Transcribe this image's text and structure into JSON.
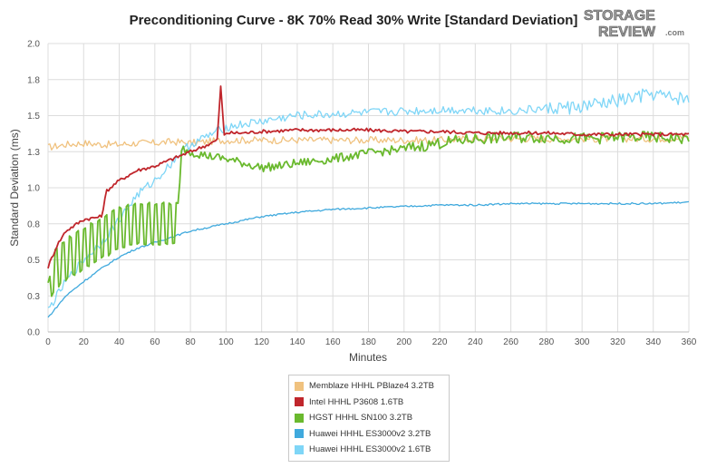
{
  "chart_data": {
    "type": "line",
    "title": "Preconditioning Curve - 8K 70% Read 30% Write [Standard Deviation]",
    "xlabel": "Minutes",
    "ylabel": "Standard Deviation (ms)",
    "xlim": [
      0,
      360
    ],
    "ylim": [
      0,
      2.0
    ],
    "x_ticks": [
      0,
      20,
      40,
      60,
      80,
      100,
      120,
      140,
      160,
      180,
      200,
      220,
      240,
      260,
      280,
      300,
      320,
      340,
      360
    ],
    "y_ticks": [
      0.0,
      0.25,
      0.5,
      0.75,
      1.0,
      1.25,
      1.5,
      1.75,
      2.0
    ],
    "y_tick_labels": [
      "0.0",
      "0.3",
      "0.5",
      "0.8",
      "1.0",
      "1.3",
      "1.5",
      "1.8",
      "2.0"
    ],
    "grid": true,
    "legend_position": "bottom",
    "series": [
      {
        "name": "Memblaze HHHL PBlaze4 3.2TB",
        "color": "#f0c27f",
        "x": [
          0,
          10,
          20,
          30,
          40,
          50,
          60,
          70,
          80,
          90,
          100,
          120,
          140,
          160,
          180,
          200,
          220,
          240,
          260,
          280,
          300,
          320,
          340,
          360
        ],
        "y": [
          1.28,
          1.3,
          1.31,
          1.3,
          1.3,
          1.31,
          1.31,
          1.32,
          1.31,
          1.32,
          1.33,
          1.33,
          1.33,
          1.33,
          1.33,
          1.33,
          1.33,
          1.34,
          1.34,
          1.34,
          1.34,
          1.34,
          1.34,
          1.35
        ]
      },
      {
        "name": "Intel HHHL P3608 1.6TB",
        "color": "#c0262c",
        "x": [
          0,
          5,
          10,
          20,
          30,
          33,
          40,
          50,
          60,
          70,
          80,
          90,
          95,
          97,
          99,
          100,
          110,
          120,
          140,
          160,
          180,
          200,
          220,
          240,
          260,
          280,
          300,
          320,
          340,
          360
        ],
        "y": [
          0.45,
          0.6,
          0.7,
          0.78,
          0.8,
          0.98,
          1.05,
          1.12,
          1.15,
          1.2,
          1.25,
          1.3,
          1.33,
          1.7,
          1.36,
          1.38,
          1.38,
          1.39,
          1.4,
          1.4,
          1.4,
          1.39,
          1.39,
          1.38,
          1.38,
          1.38,
          1.37,
          1.37,
          1.37,
          1.37
        ]
      },
      {
        "name": "HGST HHHL SN100 3.2TB",
        "color": "#6ab92e",
        "x": [
          0,
          5,
          10,
          20,
          30,
          40,
          50,
          60,
          70,
          73,
          75,
          80,
          90,
          100,
          110,
          120,
          130,
          140,
          160,
          180,
          200,
          220,
          240,
          260,
          280,
          300,
          320,
          340,
          360
        ],
        "y": [
          0.35,
          0.45,
          0.5,
          0.58,
          0.65,
          0.72,
          0.75,
          0.75,
          0.75,
          0.75,
          1.28,
          1.25,
          1.22,
          1.2,
          1.17,
          1.14,
          1.15,
          1.17,
          1.2,
          1.24,
          1.27,
          1.31,
          1.34,
          1.35,
          1.35,
          1.34,
          1.35,
          1.35,
          1.34
        ]
      },
      {
        "name": "Huawei HHHL ES3000v2 3.2TB",
        "color": "#3fa9dd",
        "x": [
          0,
          10,
          20,
          30,
          40,
          50,
          60,
          70,
          80,
          100,
          120,
          140,
          160,
          180,
          200,
          220,
          240,
          260,
          280,
          300,
          320,
          340,
          360
        ],
        "y": [
          0.1,
          0.25,
          0.35,
          0.44,
          0.52,
          0.58,
          0.62,
          0.66,
          0.7,
          0.75,
          0.8,
          0.83,
          0.85,
          0.86,
          0.87,
          0.88,
          0.88,
          0.89,
          0.89,
          0.89,
          0.89,
          0.89,
          0.9
        ]
      },
      {
        "name": "Huawei HHHL ES3000v2 1.6TB",
        "color": "#7fd6f7",
        "x": [
          0,
          10,
          20,
          30,
          40,
          50,
          60,
          70,
          75,
          80,
          90,
          100,
          120,
          140,
          160,
          180,
          200,
          220,
          240,
          260,
          280,
          300,
          320,
          340,
          350,
          360
        ],
        "y": [
          0.15,
          0.35,
          0.5,
          0.62,
          0.78,
          0.95,
          1.05,
          1.18,
          1.25,
          1.3,
          1.36,
          1.42,
          1.46,
          1.5,
          1.51,
          1.52,
          1.53,
          1.54,
          1.54,
          1.53,
          1.55,
          1.56,
          1.6,
          1.65,
          1.62,
          1.62
        ]
      }
    ]
  },
  "logo": {
    "line1": "STORAGE",
    "line2": "REVIEW",
    "suffix": ".com"
  }
}
